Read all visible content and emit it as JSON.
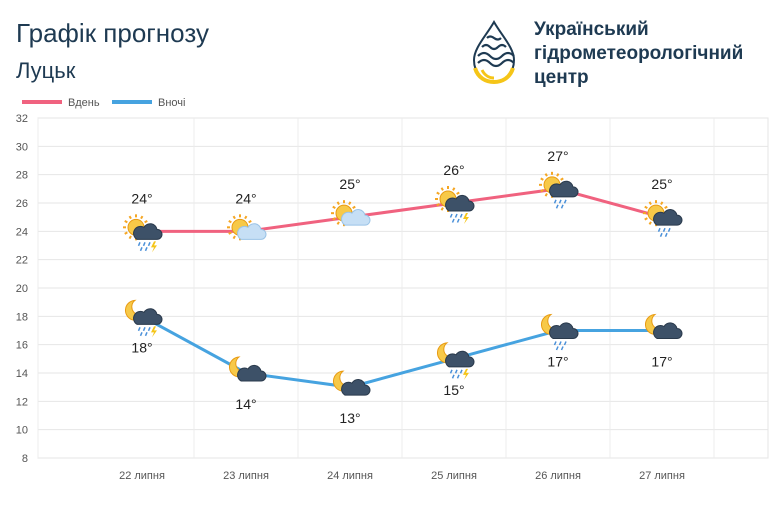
{
  "header": {
    "title": "Графік прогнозу",
    "city": "Луцьк",
    "org_lines": [
      "Український",
      "гідрометеорологічний",
      "центр"
    ]
  },
  "colors": {
    "day": "#f0627f",
    "night": "#46a3e0",
    "brand_blue": "#1e3a52",
    "brand_yellow": "#f5c518"
  },
  "chart_data": {
    "type": "line",
    "categories": [
      "22 липня",
      "23 липня",
      "24 липня",
      "25 липня",
      "26 липня",
      "27 липня"
    ],
    "ylim": [
      8,
      32
    ],
    "yticks": [
      8,
      10,
      12,
      14,
      16,
      18,
      20,
      22,
      24,
      26,
      28,
      30,
      32
    ],
    "grid": true,
    "legend_position": "top-left",
    "series": [
      {
        "name": "Вдень",
        "color": "#f0627f",
        "values": [
          24,
          24,
          25,
          26,
          27,
          25
        ],
        "labels": [
          "24°",
          "24°",
          "25°",
          "26°",
          "27°",
          "25°"
        ],
        "icons": [
          "sun-thunderstorm-icon",
          "sun-cloud-icon",
          "sun-cloud-icon",
          "sun-thunderstorm-icon",
          "sun-rain-cloud-icon",
          "sun-rain-cloud-icon"
        ]
      },
      {
        "name": "Вночі",
        "color": "#46a3e0",
        "values": [
          18,
          14,
          13,
          15,
          17,
          17
        ],
        "labels": [
          "18°",
          "14°",
          "13°",
          "15°",
          "17°",
          "17°"
        ],
        "icons": [
          "moon-thunderstorm-icon",
          "moon-cloud-icon",
          "moon-cloud-icon",
          "moon-thunderstorm-icon",
          "moon-rain-cloud-icon",
          "moon-cloud-icon"
        ]
      }
    ]
  }
}
